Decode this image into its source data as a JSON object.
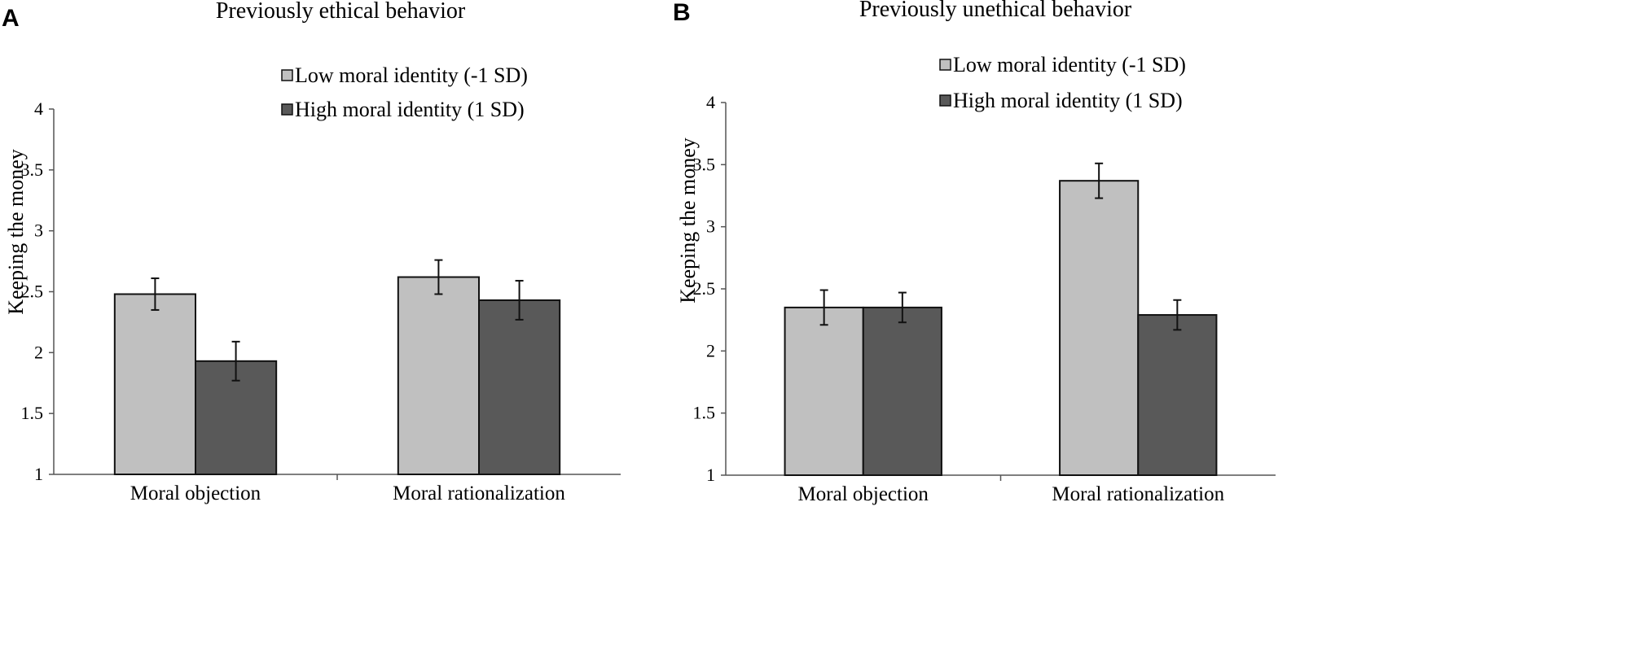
{
  "chart_data": [
    {
      "panel_label": "A",
      "type": "bar",
      "title": "Previously ethical behavior",
      "xlabel": "",
      "ylabel": "Keeping the money",
      "ylim": [
        1,
        4
      ],
      "yticks": [
        "1",
        "1.5",
        "2",
        "2.5",
        "3",
        "3.5",
        "4"
      ],
      "categories": [
        "Moral objection",
        "Moral rationalization"
      ],
      "series": [
        {
          "name": "Low moral identity (-1 SD)",
          "color": "#c0c0c0",
          "values": [
            2.48,
            2.62
          ],
          "errors": [
            0.13,
            0.14
          ]
        },
        {
          "name": "High moral identity (1 SD)",
          "color": "#595959",
          "values": [
            1.93,
            2.43
          ],
          "errors": [
            0.16,
            0.16
          ]
        }
      ],
      "legend": "top-center"
    },
    {
      "panel_label": "B",
      "type": "bar",
      "title": "Previously unethical behavior",
      "xlabel": "",
      "ylabel": "Keeping the money",
      "ylim": [
        1,
        4
      ],
      "yticks": [
        "1",
        "1.5",
        "2",
        "2.5",
        "3",
        "3.5",
        "4"
      ],
      "categories": [
        "Moral objection",
        "Moral rationalization"
      ],
      "series": [
        {
          "name": "Low moral identity (-1 SD)",
          "color": "#c0c0c0",
          "values": [
            2.35,
            3.37
          ],
          "errors": [
            0.14,
            0.14
          ]
        },
        {
          "name": "High moral identity (1 SD)",
          "color": "#595959",
          "values": [
            2.35,
            2.29
          ],
          "errors": [
            0.12,
            0.12
          ]
        }
      ],
      "legend": "top-center"
    }
  ]
}
